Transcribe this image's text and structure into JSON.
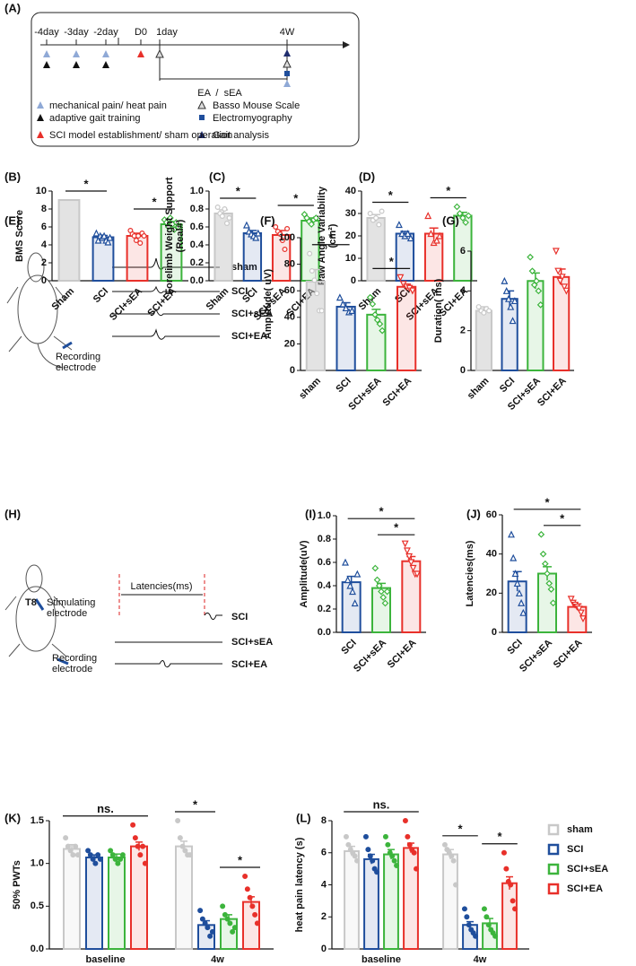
{
  "timeline": {
    "label": "(A)",
    "ticks": [
      "-4day",
      "-3day",
      "-2day",
      "D0",
      "1day",
      "4W"
    ],
    "period": "EA  /  sEA",
    "legend": [
      "mechanical pain/ heat pain",
      "adaptive gait training",
      "SCI model establishment/ sham operation",
      "Basso Mouse Scale",
      "Electromyography",
      "Gait analysis"
    ]
  },
  "diagram_e": {
    "label": "(E)",
    "traces": [
      "sham",
      "SCI",
      "SCI+sEA",
      "SCI+EA"
    ],
    "electrode": [
      "Recording",
      "electrode"
    ]
  },
  "diagram_h": {
    "label": "(H)",
    "latency": "Latencies(ms)",
    "traces": [
      "SCI",
      "SCI+sEA",
      "SCI+EA"
    ],
    "segment": "T8",
    "stimulating": [
      "Stimulating",
      "electrode"
    ],
    "recording": [
      "Recording",
      "electrode"
    ]
  },
  "chart_data": [
    {
      "type": "bar",
      "label": "(B)",
      "ylabel": "BMS Score",
      "categories": [
        "Sham",
        "SCI",
        "SCI+sEA",
        "SCI+EA"
      ],
      "values": [
        9,
        4.85,
        5.0,
        6.3
      ],
      "errors": [
        0,
        0.2,
        0.3,
        0.3
      ],
      "colors": [
        "#c8c8c8",
        "#1f4e9c",
        "#e8302a",
        "#3cb43c"
      ],
      "markers": [
        "circle",
        "triangle",
        "circle",
        "diamond"
      ],
      "points": [
        [],
        [
          5.3,
          4.5,
          5,
          4.8,
          5,
          4.5,
          4.3,
          4.8
        ],
        [
          5.6,
          5.2,
          5,
          4.5,
          5,
          4.2,
          5.3,
          5
        ],
        [
          6.8,
          6.5,
          6,
          7,
          6.3,
          5.7,
          6.5,
          6
        ]
      ],
      "ylim": [
        0,
        10
      ],
      "yticks": [
        0,
        2,
        4,
        6,
        8,
        10
      ],
      "annotations": [
        {
          "between": [
            0,
            1
          ],
          "text": "*"
        },
        {
          "between": [
            2,
            3
          ],
          "text": "*"
        }
      ]
    },
    {
      "type": "bar",
      "label": "(C)",
      "ylabel": [
        "Forelimb Weight Support",
        "(Real#)"
      ],
      "categories": [
        "Sham",
        "SCI",
        "SCI+sEA",
        "SCI+EA"
      ],
      "values": [
        0.75,
        0.53,
        0.51,
        0.67
      ],
      "errors": [
        0.04,
        0.03,
        0.05,
        0.03
      ],
      "colors": [
        "#c8c8c8",
        "#1f4e9c",
        "#e8302a",
        "#3cb43c"
      ],
      "markers": [
        "circle",
        "triangle",
        "circle",
        "diamond"
      ],
      "points": [
        [
          0.82,
          0.75,
          0.72,
          0.8,
          0.64,
          0.7
        ],
        [
          0.62,
          0.55,
          0.52,
          0.5,
          0.48,
          0.53
        ],
        [
          0.6,
          0.55,
          0.52,
          0.45,
          0.35,
          0.58
        ],
        [
          0.74,
          0.7,
          0.66,
          0.63,
          0.68,
          0.7
        ]
      ],
      "ylim": [
        0,
        1.0
      ],
      "yticks": [
        {
          "value": 0,
          "label": "0.0"
        },
        0.2,
        0.4,
        0.6,
        0.8,
        {
          "value": 1,
          "label": "1.0"
        }
      ],
      "annotations": [
        {
          "between": [
            0,
            1
          ],
          "text": "*"
        },
        {
          "between": [
            2,
            3
          ],
          "text": "*"
        }
      ]
    },
    {
      "type": "bar",
      "label": "(D)",
      "ylabel": [
        "Paw Angle Variability",
        "(cm²)"
      ],
      "categories": [
        "Sham",
        "SCI",
        "SCI+sEA",
        "SCI+EA"
      ],
      "values": [
        28,
        21,
        21,
        29
      ],
      "errors": [
        1.5,
        1,
        2.5,
        1.5
      ],
      "colors": [
        "#c8c8c8",
        "#1f4e9c",
        "#e8302a",
        "#3cb43c"
      ],
      "markers": [
        "circle",
        "triangle",
        "triangle",
        "diamond"
      ],
      "points": [
        [
          30,
          27,
          28,
          25,
          31
        ],
        [
          25,
          21,
          20,
          21,
          19
        ],
        [
          29,
          21,
          17,
          18,
          20
        ],
        [
          33,
          30,
          28,
          26,
          29
        ]
      ],
      "ylim": [
        0,
        40
      ],
      "yticks": [
        0,
        10,
        20,
        30,
        40
      ],
      "annotations": [
        {
          "between": [
            0,
            1
          ],
          "text": "*"
        },
        {
          "between": [
            2,
            3
          ],
          "text": "*"
        }
      ]
    },
    {
      "type": "bar",
      "label": "(F)",
      "ylabel": "Amplitude( uV)",
      "categories": [
        "sham",
        "SCI",
        "SCI+sEA",
        "SCI+EA"
      ],
      "values": [
        67,
        48,
        42,
        63
      ],
      "errors": [
        9,
        3,
        4,
        2
      ],
      "colors": [
        "#c8c8c8",
        "#1f4e9c",
        "#3cb43c",
        "#e8302a"
      ],
      "markers": [
        "circle",
        "triangle",
        "diamond",
        "triangle-down"
      ],
      "points": [
        [
          88,
          75,
          68,
          58,
          45,
          45
        ],
        [
          55,
          50,
          47,
          44,
          45
        ],
        [
          55,
          50,
          42,
          38,
          35,
          30
        ],
        [
          70,
          65,
          63,
          62,
          60
        ]
      ],
      "ylim": [
        0,
        100
      ],
      "yticks": [
        0,
        20,
        40,
        60,
        80,
        100
      ],
      "annotations": [
        {
          "between": [
            0,
            1
          ],
          "text": "*"
        },
        {
          "between": [
            2,
            3
          ],
          "text": "*"
        }
      ]
    },
    {
      "type": "bar",
      "label": "(G)",
      "ylabel": "Duration( ms)",
      "categories": [
        "sham",
        "SCI",
        "SCI+sEA",
        "SCI+EA"
      ],
      "values": [
        3.0,
        3.6,
        4.5,
        4.7
      ],
      "errors": [
        0.2,
        0.4,
        0.4,
        0.4
      ],
      "colors": [
        "#c8c8c8",
        "#1f4e9c",
        "#3cb43c",
        "#e8302a"
      ],
      "markers": [
        "circle",
        "triangle",
        "diamond",
        "triangle-down"
      ],
      "points": [
        [
          3.2,
          3.0,
          2.9,
          3.1,
          3.0
        ],
        [
          4.5,
          4.0,
          3.6,
          3.2,
          2.5,
          3.5
        ],
        [
          5.7,
          5.0,
          4.3,
          4.5,
          4.0,
          3.3
        ],
        [
          6.0,
          5.0,
          4.5,
          4.7,
          4.2,
          4.0
        ]
      ],
      "ylim": [
        0,
        6
      ],
      "yticks": [
        0,
        2,
        4,
        6
      ],
      "annotations": []
    },
    {
      "type": "bar",
      "label": "(I)",
      "ylabel": "Amplitude(uV)",
      "categories": [
        "SCI",
        "SCI+sEA",
        "SCI+EA"
      ],
      "values": [
        0.43,
        0.38,
        0.61
      ],
      "errors": [
        0.05,
        0.04,
        0.04
      ],
      "colors": [
        "#1f4e9c",
        "#3cb43c",
        "#e8302a"
      ],
      "markers": [
        "triangle",
        "diamond",
        "triangle-down"
      ],
      "points": [
        [
          0.6,
          0.45,
          0.4,
          0.35,
          0.25,
          0.5
        ],
        [
          0.55,
          0.45,
          0.4,
          0.35,
          0.3,
          0.25,
          0.35
        ],
        [
          0.76,
          0.7,
          0.65,
          0.6,
          0.55,
          0.5,
          0.5
        ]
      ],
      "ylim": [
        0,
        1.0
      ],
      "yticks": [
        {
          "value": 0,
          "label": "0.0"
        },
        0.2,
        0.4,
        0.6,
        0.8,
        {
          "value": 1,
          "label": "1.0"
        }
      ],
      "annotations": [
        {
          "between": [
            1,
            2
          ],
          "text": "*"
        },
        {
          "between": [
            0,
            2
          ],
          "text": "*"
        }
      ]
    },
    {
      "type": "bar",
      "label": "(J)",
      "ylabel": "Latencies(ms)",
      "categories": [
        "SCI",
        "SCI+sEA",
        "SCI+EA"
      ],
      "values": [
        26,
        30,
        13
      ],
      "errors": [
        5,
        3.5,
        1.5
      ],
      "colors": [
        "#1f4e9c",
        "#3cb43c",
        "#e8302a"
      ],
      "markers": [
        "triangle",
        "diamond",
        "triangle-down"
      ],
      "points": [
        [
          50,
          38,
          30,
          25,
          20,
          15,
          10
        ],
        [
          50,
          40,
          35,
          30,
          25,
          22,
          15
        ],
        [
          17,
          15,
          14,
          13,
          12,
          10,
          7
        ]
      ],
      "ylim": [
        0,
        60
      ],
      "yticks": [
        0,
        20,
        40,
        60
      ],
      "annotations": [
        {
          "between": [
            1,
            2
          ],
          "text": "*"
        },
        {
          "between": [
            0,
            2
          ],
          "text": "*"
        }
      ]
    },
    {
      "type": "grouped_bar",
      "label": "(K)",
      "ylabel": "50% PWTs",
      "categories": [
        "baseline",
        "4w"
      ],
      "series": [
        {
          "name": "sham",
          "color": "#c8c8c8",
          "values": [
            1.17,
            1.2
          ],
          "errors": [
            0.05,
            0.06
          ],
          "points": [
            [
              1.3,
              1.2,
              1.15,
              1.1,
              1.2,
              1.1
            ],
            [
              1.5,
              1.3,
              1.2,
              1.15,
              1.1,
              1.1
            ]
          ]
        },
        {
          "name": "SCI",
          "color": "#1f4e9c",
          "values": [
            1.07,
            0.28
          ],
          "errors": [
            0.03,
            0.05
          ],
          "points": [
            [
              1.15,
              1.1,
              1.05,
              1.0,
              1.1,
              1.05
            ],
            [
              0.45,
              0.35,
              0.3,
              0.25,
              0.15,
              0.2
            ]
          ]
        },
        {
          "name": "SCI+sEA",
          "color": "#3cb43c",
          "values": [
            1.07,
            0.35
          ],
          "errors": [
            0.04,
            0.05
          ],
          "points": [
            [
              1.15,
              1.1,
              1.05,
              1.0,
              1.05,
              1.1
            ],
            [
              0.5,
              0.4,
              0.35,
              0.3,
              0.2,
              0.25
            ]
          ]
        },
        {
          "name": "SCI+EA",
          "color": "#e8302a",
          "values": [
            1.2,
            0.55
          ],
          "errors": [
            0.05,
            0.06
          ],
          "points": [
            [
              1.45,
              1.3,
              1.2,
              1.1,
              1.2,
              1.0
            ],
            [
              0.85,
              0.7,
              0.6,
              0.5,
              0.4,
              0.3
            ]
          ]
        }
      ],
      "ylim": [
        0,
        1.5
      ],
      "yticks": [
        {
          "value": 0,
          "label": "0.0"
        },
        0.5,
        {
          "value": 1,
          "label": "1.0"
        },
        1.5
      ],
      "annotations": [
        {
          "category": 0,
          "between": [
            0,
            3
          ],
          "text": "ns."
        },
        {
          "category": 1,
          "between": [
            0,
            1
          ],
          "text": "*"
        },
        {
          "category": 1,
          "between": [
            2,
            3
          ],
          "text": "*"
        }
      ]
    },
    {
      "type": "grouped_bar",
      "label": "(L)",
      "ylabel": "heat pain latency (s)",
      "categories": [
        "baseline",
        "4w"
      ],
      "legend": "right",
      "series": [
        {
          "name": "sham",
          "color": "#c8c8c8",
          "values": [
            6.1,
            5.9
          ],
          "errors": [
            0.3,
            0.3
          ],
          "points": [
            [
              7.0,
              6.5,
              6.2,
              6.0,
              5.8,
              5.5
            ],
            [
              6.5,
              6.2,
              6.0,
              5.8,
              5.5,
              4.0
            ]
          ]
        },
        {
          "name": "SCI",
          "color": "#1f4e9c",
          "values": [
            5.6,
            1.5
          ],
          "errors": [
            0.3,
            0.2
          ],
          "points": [
            [
              7.0,
              6.2,
              5.8,
              5.5,
              5.0,
              4.8
            ],
            [
              2.5,
              2.0,
              1.5,
              1.2,
              1.0,
              0.8
            ]
          ]
        },
        {
          "name": "SCI+sEA",
          "color": "#3cb43c",
          "values": [
            5.9,
            1.6
          ],
          "errors": [
            0.3,
            0.3
          ],
          "points": [
            [
              7.0,
              6.5,
              6.0,
              5.8,
              5.5,
              5.2
            ],
            [
              2.5,
              2.0,
              1.5,
              1.2,
              1.0,
              0.8
            ]
          ]
        },
        {
          "name": "SCI+EA",
          "color": "#e8302a",
          "values": [
            6.3,
            4.1
          ],
          "errors": [
            0.3,
            0.4
          ],
          "points": [
            [
              8.0,
              7.0,
              6.5,
              6.2,
              6.0,
              5.0
            ],
            [
              6.0,
              5.0,
              4.2,
              4.0,
              3.0,
              2.5
            ]
          ]
        }
      ],
      "ylim": [
        0,
        8
      ],
      "yticks": [
        0,
        2,
        4,
        6,
        8
      ],
      "annotations": [
        {
          "category": 0,
          "between": [
            0,
            3
          ],
          "text": "ns."
        },
        {
          "category": 1,
          "between": [
            0,
            1
          ],
          "text": "*"
        },
        {
          "category": 1,
          "between": [
            2,
            3
          ],
          "text": "*"
        }
      ]
    }
  ]
}
